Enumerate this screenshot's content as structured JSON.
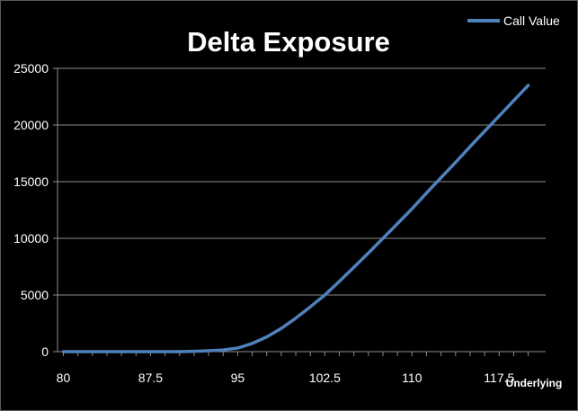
{
  "chart_data": {
    "type": "line",
    "title": "Delta Exposure",
    "xlabel": "Underlying",
    "ylabel": "",
    "x_tick_labels": [
      "80",
      "87.5",
      "95",
      "102.5",
      "110",
      "117.5"
    ],
    "x_tick_values": [
      80,
      87.5,
      95,
      102.5,
      110,
      117.5
    ],
    "y_tick_labels": [
      "0",
      "5000",
      "10000",
      "15000",
      "20000",
      "25000"
    ],
    "y_tick_values": [
      0,
      5000,
      10000,
      15000,
      20000,
      25000
    ],
    "xlim": [
      79.5,
      121.5
    ],
    "ylim": [
      0,
      25000
    ],
    "grid": true,
    "legend_position": "top-right",
    "series": [
      {
        "name": "Call Value",
        "color": "#4f81bd",
        "x": [
          80,
          81.25,
          82.5,
          83.75,
          85,
          86.25,
          87.5,
          88.75,
          90,
          91.25,
          92.5,
          93.75,
          95,
          96.25,
          97.5,
          98.75,
          100,
          101.25,
          102.5,
          103.75,
          105,
          106.25,
          107.5,
          108.75,
          110,
          111.25,
          112.5,
          113.75,
          115,
          116.25,
          117.5,
          118.75,
          120
        ],
        "values": [
          0,
          0,
          0,
          0,
          0,
          0,
          0,
          0,
          0,
          30,
          80,
          150,
          320,
          720,
          1300,
          2050,
          2950,
          3950,
          5000,
          6200,
          7450,
          8700,
          10000,
          11300,
          12600,
          14000,
          15350,
          16700,
          18100,
          19450,
          20800,
          22150,
          23500
        ]
      }
    ]
  }
}
